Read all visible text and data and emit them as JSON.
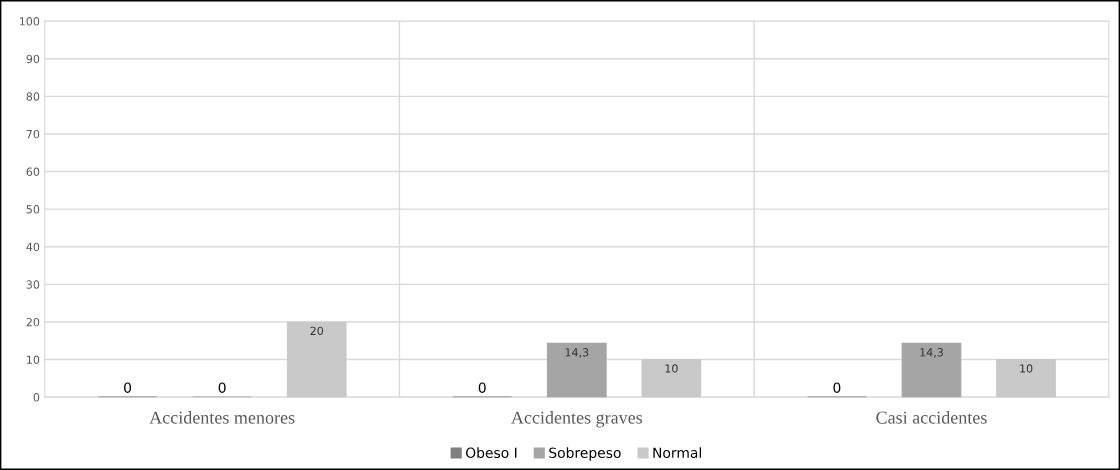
{
  "chart_data": {
    "type": "bar",
    "categories": [
      "Accidentes menores",
      "Accidentes graves",
      "Casi accidentes"
    ],
    "series": [
      {
        "name": "Obeso I",
        "color": "#7f7f7f",
        "values": [
          0,
          0,
          0
        ],
        "value_labels": [
          "0",
          "0",
          "0"
        ]
      },
      {
        "name": "Sobrepeso",
        "color": "#a5a5a5",
        "values": [
          0,
          14.3,
          14.3
        ],
        "value_labels": [
          "0",
          "14,3",
          "14,3"
        ]
      },
      {
        "name": "Normal",
        "color": "#c9c9c9",
        "values": [
          20,
          10,
          10
        ],
        "value_labels": [
          "20",
          "10",
          "10"
        ]
      }
    ],
    "ylim": [
      0,
      100
    ],
    "yticks": [
      0,
      10,
      20,
      30,
      40,
      50,
      60,
      70,
      80,
      90,
      100
    ],
    "grid": true,
    "legend": "bottom"
  }
}
